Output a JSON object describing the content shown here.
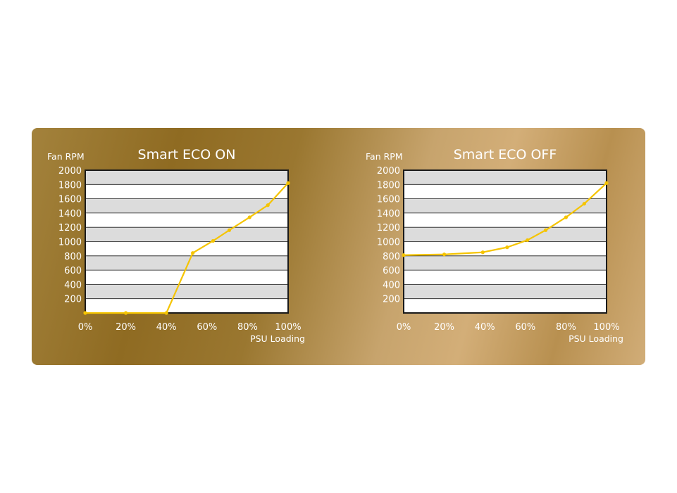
{
  "chart_data": [
    {
      "type": "line",
      "title": "Smart ECO ON",
      "ylabel": "Fan RPM",
      "xlabel": "PSU Loading",
      "x_ticks": [
        "0%",
        "20%",
        "40%",
        "60%",
        "80%",
        "100%"
      ],
      "y_ticks": [
        "200",
        "400",
        "600",
        "800",
        "1000",
        "1200",
        "1400",
        "1600",
        "1800",
        "2000"
      ],
      "xlim": [
        0,
        100
      ],
      "ylim": [
        0,
        2000
      ],
      "grid": true,
      "line_color": "#f5c400",
      "series": [
        {
          "x": [
            0,
            20,
            40,
            53,
            63,
            71,
            81,
            90,
            100
          ],
          "y": [
            0,
            0,
            0,
            840,
            1010,
            1160,
            1340,
            1510,
            1820
          ]
        }
      ]
    },
    {
      "type": "line",
      "title": "Smart ECO OFF",
      "ylabel": "Fan RPM",
      "xlabel": "PSU Loading",
      "x_ticks": [
        "0%",
        "20%",
        "40%",
        "60%",
        "80%",
        "100%"
      ],
      "y_ticks": [
        "200",
        "400",
        "600",
        "800",
        "1000",
        "1200",
        "1400",
        "1600",
        "1800",
        "2000"
      ],
      "xlim": [
        0,
        100
      ],
      "ylim": [
        0,
        2000
      ],
      "grid": true,
      "line_color": "#f5c400",
      "series": [
        {
          "x": [
            0,
            20,
            39,
            51,
            61,
            70,
            80,
            89,
            100
          ],
          "y": [
            810,
            820,
            850,
            920,
            1020,
            1160,
            1340,
            1530,
            1820
          ]
        }
      ]
    }
  ]
}
